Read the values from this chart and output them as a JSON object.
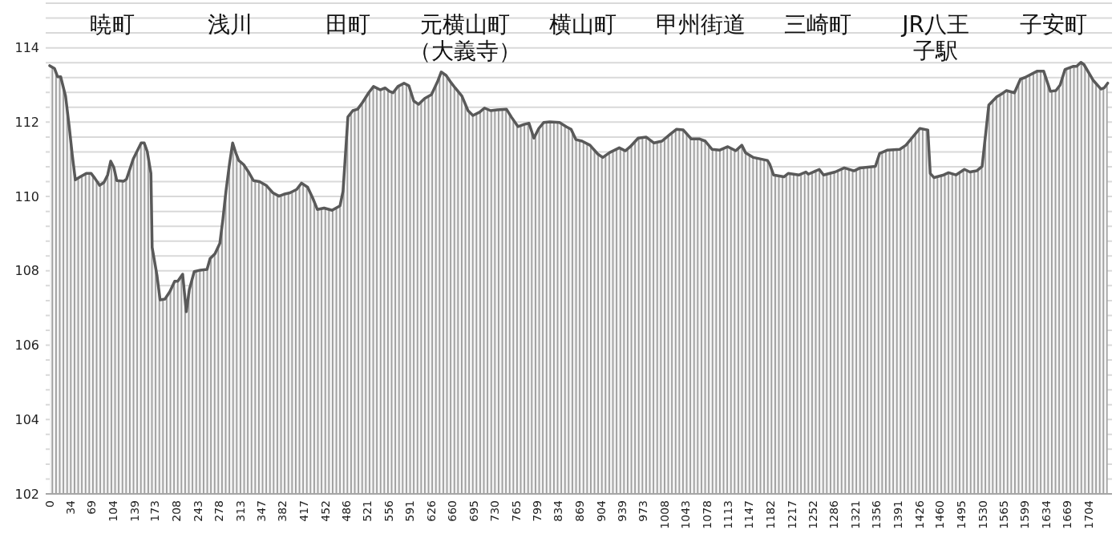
{
  "chart_data": {
    "type": "area",
    "x": [
      0,
      8,
      13,
      18,
      26,
      32,
      37,
      42,
      50,
      60,
      68,
      74,
      82,
      89,
      95,
      100,
      105,
      110,
      121,
      126,
      137,
      150,
      155,
      160,
      166,
      168,
      176,
      181,
      189,
      197,
      205,
      210,
      218,
      224,
      229,
      237,
      247,
      258,
      263,
      271,
      279,
      284,
      289,
      295,
      300,
      305,
      310,
      318,
      326,
      334,
      344,
      355,
      366,
      376,
      384,
      394,
      405,
      413,
      423,
      431,
      439,
      450,
      463,
      476,
      481,
      489,
      497,
      505,
      513,
      523,
      531,
      542,
      550,
      557,
      563,
      571,
      581,
      589,
      597,
      605,
      615,
      626,
      636,
      642,
      650,
      657,
      665,
      676,
      686,
      694,
      705,
      713,
      723,
      734,
      749,
      757,
      768,
      778,
      786,
      794,
      802,
      810,
      820,
      836,
      847,
      855,
      863,
      873,
      886,
      899,
      907,
      918,
      934,
      944,
      952,
      965,
      978,
      991,
      1004,
      1018,
      1028,
      1039,
      1052,
      1065,
      1075,
      1086,
      1099,
      1112,
      1125,
      1135,
      1141,
      1154,
      1177,
      1181,
      1187,
      1204,
      1211,
      1229,
      1240,
      1244,
      1262,
      1269,
      1288,
      1303,
      1319,
      1329,
      1354,
      1361,
      1374,
      1394,
      1404,
      1427,
      1440,
      1444,
      1450,
      1466,
      1474,
      1486,
      1500,
      1509,
      1520,
      1529,
      1540,
      1553,
      1562,
      1569,
      1582,
      1592,
      1599,
      1619,
      1630,
      1641,
      1650,
      1657,
      1665,
      1678,
      1684,
      1691,
      1696,
      1711,
      1724,
      1729,
      1735
    ],
    "series": [
      {
        "color": "#595959",
        "values": [
          113.52,
          113.44,
          113.22,
          113.22,
          112.7,
          111.88,
          111.12,
          110.45,
          110.53,
          110.62,
          110.62,
          110.49,
          110.3,
          110.38,
          110.58,
          110.95,
          110.79,
          110.43,
          110.41,
          110.47,
          111.01,
          111.44,
          111.44,
          111.21,
          110.62,
          108.63,
          107.87,
          107.22,
          107.24,
          107.44,
          107.72,
          107.72,
          107.91,
          106.9,
          107.5,
          107.98,
          108.02,
          108.04,
          108.33,
          108.46,
          108.74,
          109.39,
          110.14,
          110.9,
          111.44,
          111.18,
          110.97,
          110.86,
          110.66,
          110.43,
          110.4,
          110.3,
          110.1,
          110.01,
          110.06,
          110.1,
          110.19,
          110.36,
          110.25,
          109.97,
          109.65,
          109.69,
          109.63,
          109.75,
          110.14,
          112.14,
          112.31,
          112.35,
          112.53,
          112.79,
          112.96,
          112.87,
          112.92,
          112.83,
          112.79,
          112.96,
          113.05,
          112.98,
          112.57,
          112.48,
          112.64,
          112.74,
          113.09,
          113.35,
          113.26,
          113.09,
          112.92,
          112.7,
          112.31,
          112.18,
          112.27,
          112.38,
          112.31,
          112.33,
          112.35,
          112.14,
          111.88,
          111.94,
          111.97,
          111.57,
          111.83,
          111.99,
          112.01,
          111.99,
          111.88,
          111.81,
          111.53,
          111.49,
          111.38,
          111.14,
          111.05,
          111.18,
          111.31,
          111.23,
          111.34,
          111.57,
          111.6,
          111.44,
          111.49,
          111.68,
          111.81,
          111.79,
          111.55,
          111.55,
          111.49,
          111.27,
          111.25,
          111.34,
          111.23,
          111.38,
          111.18,
          111.05,
          110.97,
          110.86,
          110.58,
          110.53,
          110.62,
          110.58,
          110.66,
          110.6,
          110.73,
          110.58,
          110.66,
          110.77,
          110.69,
          110.77,
          110.81,
          111.16,
          111.25,
          111.27,
          111.38,
          111.83,
          111.79,
          110.62,
          110.51,
          110.58,
          110.64,
          110.58,
          110.73,
          110.66,
          110.69,
          110.81,
          112.46,
          112.68,
          112.77,
          112.85,
          112.79,
          113.16,
          113.2,
          113.37,
          113.37,
          112.83,
          112.85,
          113.0,
          113.42,
          113.5,
          113.5,
          113.61,
          113.55,
          113.13,
          112.89,
          112.92,
          113.05
        ]
      }
    ],
    "xlim": [
      0,
      1742
    ],
    "xticks": [
      0,
      34,
      69,
      104,
      139,
      173,
      208,
      243,
      278,
      313,
      347,
      382,
      417,
      452,
      486,
      521,
      556,
      591,
      626,
      660,
      695,
      730,
      765,
      799,
      834,
      869,
      904,
      939,
      973,
      1008,
      1043,
      1078,
      1113,
      1147,
      1182,
      1217,
      1252,
      1286,
      1321,
      1356,
      1391,
      1426,
      1460,
      1495,
      1530,
      1565,
      1599,
      1634,
      1669,
      1704
    ],
    "ylim": [
      102,
      115.2
    ],
    "yticks": [
      102,
      {
        "value": 102.4,
        "label": null
      },
      {
        "value": 102.8,
        "label": null
      },
      {
        "value": 103.2,
        "label": null
      },
      {
        "value": 103.6,
        "label": null
      },
      104,
      {
        "value": 104.4,
        "label": null
      },
      {
        "value": 104.8,
        "label": null
      },
      {
        "value": 105.2,
        "label": null
      },
      {
        "value": 105.6,
        "label": null
      },
      106,
      {
        "value": 106.4,
        "label": null
      },
      {
        "value": 106.8,
        "label": null
      },
      {
        "value": 107.2,
        "label": null
      },
      {
        "value": 107.6,
        "label": null
      },
      108,
      {
        "value": 108.4,
        "label": null
      },
      {
        "value": 108.8,
        "label": null
      },
      {
        "value": 109.2,
        "label": null
      },
      {
        "value": 109.6,
        "label": null
      },
      110,
      {
        "value": 110.4,
        "label": null
      },
      {
        "value": 110.8,
        "label": null
      },
      {
        "value": 111.2,
        "label": null
      },
      {
        "value": 111.6,
        "label": null
      },
      112,
      {
        "value": 112.4,
        "label": null
      },
      {
        "value": 112.8,
        "label": null
      },
      {
        "value": 113.2,
        "label": null
      },
      {
        "value": 113.6,
        "label": null
      },
      114,
      {
        "value": 114.4,
        "label": null
      },
      {
        "value": 114.8,
        "label": null
      },
      {
        "value": 115.2,
        "label": null
      }
    ],
    "grid": "y",
    "annotations": [
      "暁町",
      "浅川",
      "田町",
      "元横山町（大義寺）",
      "横山町",
      "甲州街道",
      "三崎町",
      "JR八王子駅",
      "子安町"
    ]
  }
}
